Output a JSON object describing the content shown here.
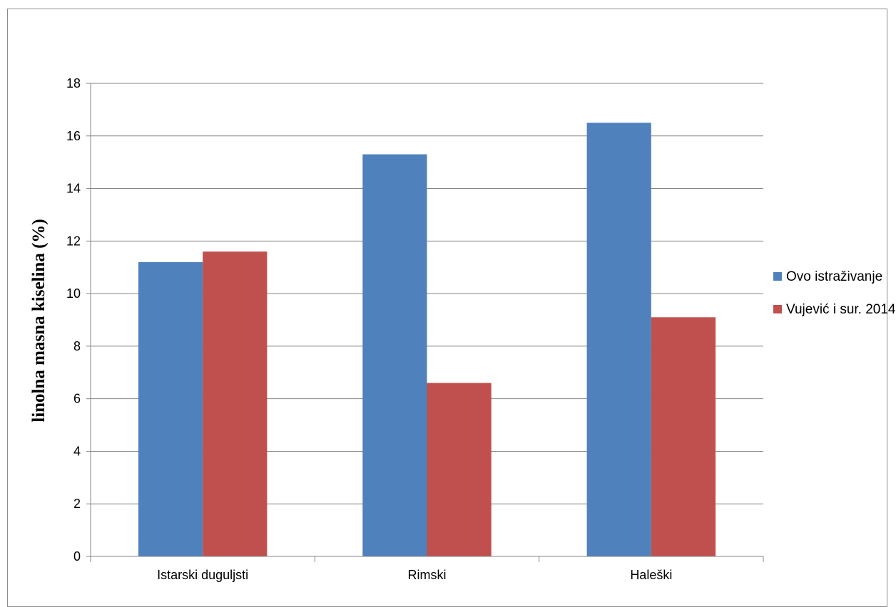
{
  "chart_data": {
    "type": "bar",
    "title": "",
    "xlabel": "",
    "ylabel": "linolna masna kiselina  (%)",
    "categories": [
      "Istarski duguljsti",
      "Rimski",
      "Haleški"
    ],
    "series": [
      {
        "name": "Ovo istraživanje",
        "color": "#4f81bd",
        "values": [
          11.2,
          15.3,
          16.5
        ]
      },
      {
        "name": "Vujević i sur. 2014",
        "color": "#c0504d",
        "values": [
          11.6,
          6.6,
          9.1
        ]
      }
    ],
    "ylim": [
      0,
      18
    ],
    "yticks": [
      0,
      2,
      4,
      6,
      8,
      10,
      12,
      14,
      16,
      18
    ],
    "yticks_text": [
      "0",
      "2",
      "4",
      "6",
      "8",
      "10",
      "12",
      "14",
      "16",
      "18"
    ],
    "grid": true,
    "legend": "right"
  }
}
